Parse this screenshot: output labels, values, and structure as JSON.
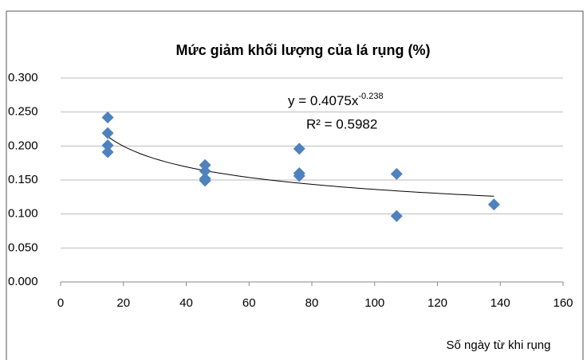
{
  "chart_data": {
    "type": "scatter",
    "title": "Mức giảm khối lượng của lá rụng (%)",
    "x_label": "Số ngày từ khi rụng",
    "series": [
      {
        "name": "Mức giảm khối lượng",
        "color": "#4f81bd",
        "x": [
          15,
          15,
          15,
          15,
          46,
          46,
          46,
          46,
          76,
          76,
          76,
          107,
          107,
          138
        ],
        "values": [
          0.242,
          0.219,
          0.201,
          0.191,
          0.172,
          0.163,
          0.152,
          0.149,
          0.196,
          0.16,
          0.156,
          0.159,
          0.097,
          0.114
        ]
      }
    ],
    "trendline": {
      "coefficient": 0.4075,
      "exponent": -0.238,
      "r_squared": 0.5982,
      "equation_label": "y = 0.4075x",
      "exponent_label": "-0.238",
      "r_squared_label": "R² = 0.5982"
    },
    "xlim": [
      0,
      160
    ],
    "xticks": [
      0,
      20,
      40,
      60,
      80,
      100,
      120,
      140,
      160
    ],
    "ylim": [
      0,
      0.3
    ],
    "yticks": [
      {
        "value": 0,
        "label": "0.000"
      },
      {
        "value": 0.05,
        "label": "0.050"
      },
      {
        "value": 0.1,
        "label": "0.100"
      },
      {
        "value": 0.15,
        "label": "0.150"
      },
      {
        "value": 0.2,
        "label": "0.200"
      },
      {
        "value": 0.25,
        "label": "0.250"
      },
      {
        "value": 0.3,
        "label": "0.300"
      }
    ],
    "grid": true
  }
}
